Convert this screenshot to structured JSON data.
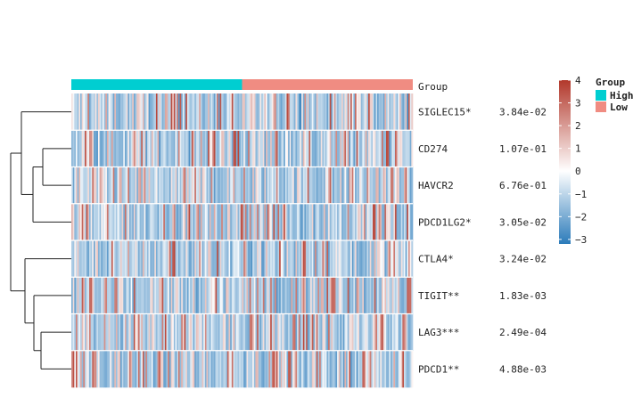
{
  "chart_data": {
    "type": "heatmap",
    "genes": [
      "SIGLEC15*",
      "CD274",
      "HAVCR2",
      "PDCD1LG2*",
      "CTLA4*",
      "TIGIT**",
      "LAG3***",
      "PDCD1**"
    ],
    "pvalues": [
      "3.84e-02",
      "1.07e-01",
      "6.76e-01",
      "3.05e-02",
      "3.24e-02",
      "1.83e-03",
      "2.49e-04",
      "4.88e-03"
    ],
    "annotation": {
      "label": "Group",
      "groups": [
        {
          "name": "High",
          "color": "#00CED1",
          "fraction": 0.5
        },
        {
          "name": "Low",
          "color": "#F08C82",
          "fraction": 0.5
        }
      ]
    },
    "colorbar": {
      "min": -3.2,
      "max": 4,
      "ticks": [
        4,
        3,
        2,
        1,
        0,
        -1,
        -2,
        -3
      ],
      "tick_labels": [
        "4",
        "3",
        "2",
        "1",
        "0",
        "−1",
        "−2",
        "−3"
      ],
      "low_color": "#2B7BBA",
      "mid_color": "#FFFFFF",
      "high_color": "#B2382B"
    },
    "legend": {
      "title": "Group",
      "entries": [
        "High",
        "Low"
      ],
      "position": "right"
    },
    "dendrogram": "rows, left side",
    "grid": false
  }
}
